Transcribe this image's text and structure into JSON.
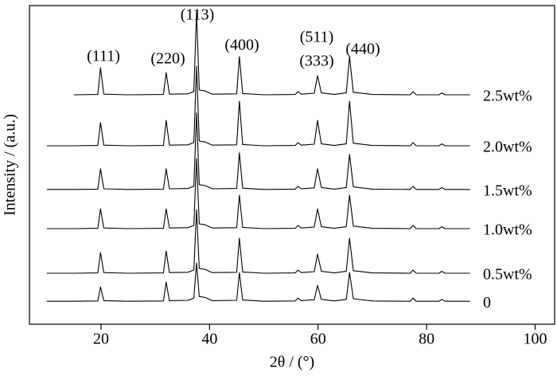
{
  "chart_data": {
    "type": "line",
    "xlabel": "2θ / (°)",
    "ylabel": "Intensity / (a.u.)",
    "xlim": [
      6.8,
      103.6
    ],
    "xticks": [
      20,
      40,
      60,
      80,
      100
    ],
    "ylim": [
      0,
      100
    ],
    "grid": false,
    "annotations": [
      "(111)",
      "(220)",
      "(113)",
      "(400)",
      "(511)",
      "(333)",
      "(440)"
    ],
    "x": [
      10,
      15,
      19.4,
      19.9,
      20.5,
      25,
      31.5,
      32.0,
      32.6,
      36,
      37.1,
      37.6,
      38.1,
      39.2,
      40.5,
      45.0,
      45.5,
      46.1,
      50,
      55.8,
      56.3,
      56.9,
      59.3,
      59.9,
      60.6,
      63,
      65.2,
      65.8,
      66.5,
      70,
      77,
      77.5,
      78.1,
      82.3,
      82.8,
      83.4,
      88
    ],
    "series": [
      {
        "name": "2.5wt%",
        "color": "#000000",
        "values": [
          null,
          72,
          72.1,
          80.5,
          72.2,
          72,
          72.1,
          79,
          72.2,
          72.3,
          73,
          98,
          73.5,
          73.2,
          72.2,
          72.3,
          84,
          72.4,
          72,
          72.1,
          73,
          72.2,
          72.5,
          78,
          72.6,
          72.1,
          72.6,
          84,
          72.8,
          72.1,
          72,
          73,
          72,
          72,
          72.6,
          72,
          72
        ]
      },
      {
        "name": "2.0wt%",
        "color": "#000000",
        "values": [
          56,
          56,
          56.1,
          63.3,
          56.2,
          56,
          56.1,
          64,
          56.2,
          56.3,
          57,
          81,
          57.5,
          57.2,
          56.2,
          56.3,
          70,
          56.4,
          56,
          56.1,
          57,
          56.2,
          56.5,
          64,
          56.6,
          56.1,
          56.6,
          70,
          56.8,
          56.1,
          56,
          57,
          56,
          56,
          56.6,
          56,
          56
        ]
      },
      {
        "name": "1.5wt%",
        "color": "#000000",
        "values": [
          42.3,
          42.3,
          42.4,
          48.8,
          42.5,
          42.3,
          42.4,
          48.8,
          42.5,
          42.6,
          43.3,
          66.3,
          43.8,
          43.5,
          42.5,
          42.6,
          53.8,
          42.7,
          42.3,
          42.4,
          43.3,
          42.5,
          42.8,
          48.8,
          42.9,
          42.4,
          42.9,
          53.3,
          43.1,
          42.4,
          42.3,
          43.3,
          42.3,
          42.3,
          42.9,
          42.3,
          42.3
        ]
      },
      {
        "name": "1.0wt%",
        "color": "#000000",
        "values": [
          30,
          30,
          30.1,
          36.2,
          30.2,
          30,
          30.1,
          36.2,
          30.2,
          30.3,
          31,
          52,
          31.5,
          31.2,
          30.2,
          30.3,
          40.5,
          30.4,
          30,
          30.1,
          31,
          30.2,
          30.5,
          36.2,
          30.6,
          30.1,
          30.6,
          40.5,
          30.8,
          30.1,
          30,
          31,
          30,
          30,
          30.6,
          30,
          30
        ]
      },
      {
        "name": "0.5wt%",
        "color": "#000000",
        "values": [
          16,
          16,
          16.1,
          22.5,
          16.2,
          16,
          16.1,
          23,
          16.2,
          16.3,
          17,
          36,
          17.5,
          17.2,
          16.2,
          16.3,
          27,
          16.4,
          16,
          16.1,
          17,
          16.2,
          16.5,
          22,
          16.6,
          16.1,
          16.6,
          27,
          16.8,
          16.1,
          16,
          17,
          16,
          16,
          16.6,
          16,
          16
        ]
      },
      {
        "name": "0",
        "color": "#000000",
        "values": [
          7.2,
          7.2,
          7.3,
          11.7,
          7.4,
          7.2,
          7.3,
          13.2,
          7.4,
          7.5,
          8.2,
          19.2,
          8.7,
          8.4,
          7.4,
          7.5,
          16.2,
          7.6,
          7.2,
          7.3,
          8.2,
          7.4,
          7.7,
          12.2,
          7.8,
          7.3,
          7.8,
          16.2,
          8,
          7.3,
          7.2,
          8.2,
          7.2,
          7.2,
          7.8,
          7.2,
          7.2
        ]
      }
    ]
  }
}
